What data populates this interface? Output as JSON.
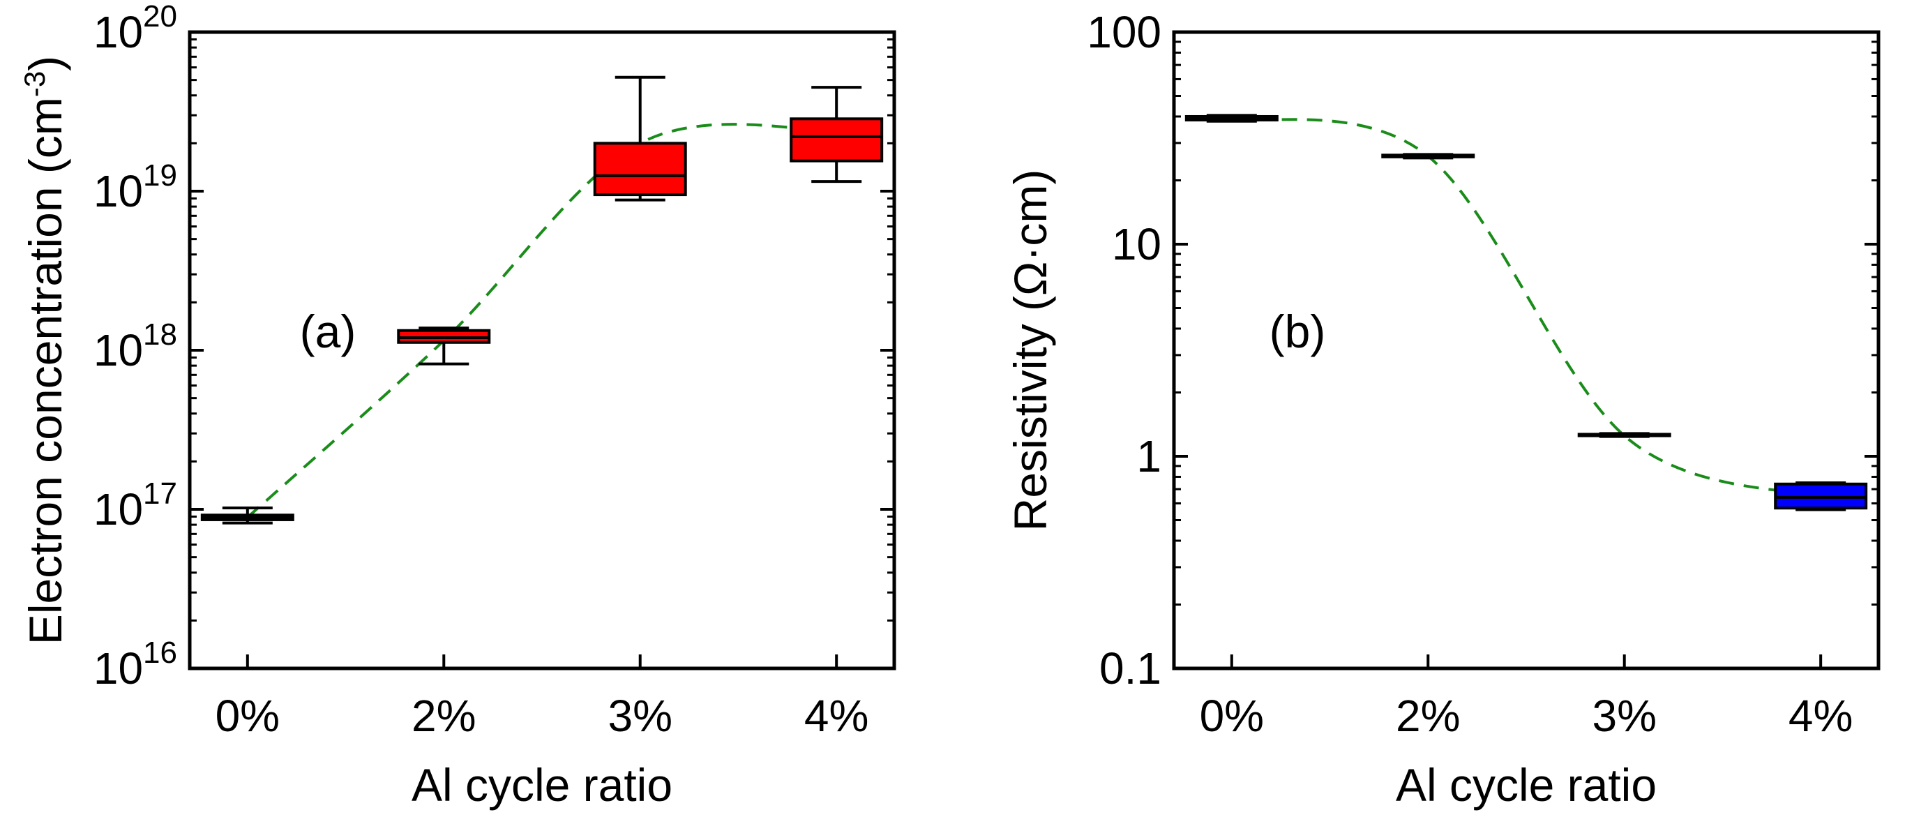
{
  "colors": {
    "box_fill_a": "#ff0000",
    "box_fill_b": "#0000ff",
    "trend_line": "#1a8c1a",
    "axis": "#000000"
  },
  "chart_data": [
    {
      "type": "box",
      "panel_label": "(a)",
      "xlabel": "Al cycle ratio",
      "ylabel": "Electron concentration (cm",
      "ylabel_unit_exponent": "-3",
      "ylabel_close": ")",
      "yscale": "log",
      "ylim": [
        1e+16,
        1e+20
      ],
      "yticks": [
        1e+16,
        1e+17,
        1e+18,
        1e+19,
        1e+20
      ],
      "ytick_labels": [
        {
          "base": "10",
          "exp": "16"
        },
        {
          "base": "10",
          "exp": "17"
        },
        {
          "base": "10",
          "exp": "18"
        },
        {
          "base": "10",
          "exp": "19"
        },
        {
          "base": "10",
          "exp": "20"
        }
      ],
      "categories": [
        "0%",
        "2%",
        "3%",
        "4%"
      ],
      "box_color": "#ff0000",
      "boxes": [
        {
          "category": "0%",
          "whisker_low": 8.2e+16,
          "q1": 8.6e+16,
          "median": 8.9e+16,
          "q3": 9.2e+16,
          "whisker_high": 1.02e+17
        },
        {
          "category": "2%",
          "whisker_low": 8.2e+17,
          "q1": 1.12e+18,
          "median": 1.2e+18,
          "q3": 1.33e+18,
          "whisker_high": 1.38e+18
        },
        {
          "category": "3%",
          "whisker_low": 8.8e+18,
          "q1": 9.5e+18,
          "median": 1.25e+19,
          "q3": 2e+19,
          "whisker_high": 5.2e+19
        },
        {
          "category": "4%",
          "whisker_low": 1.15e+19,
          "q1": 1.55e+19,
          "median": 2.2e+19,
          "q3": 2.85e+19,
          "whisker_high": 4.5e+19
        }
      ],
      "trend": [
        8.9e+16,
        1.15e+18,
        2e+19,
        2.4e+19
      ],
      "trend_style": "dashed"
    },
    {
      "type": "box",
      "panel_label": "(b)",
      "xlabel": "Al cycle ratio",
      "ylabel": "Resistivity (Ω·cm)",
      "yscale": "log",
      "ylim": [
        0.1,
        100
      ],
      "yticks": [
        0.1,
        1,
        10,
        100
      ],
      "ytick_labels": [
        "0.1",
        "1",
        "10",
        "100"
      ],
      "categories": [
        "0%",
        "2%",
        "3%",
        "4%"
      ],
      "box_color": "#0000ff",
      "boxes": [
        {
          "category": "0%",
          "whisker_low": 38.0,
          "q1": 38.5,
          "median": 39.0,
          "q3": 40.0,
          "whisker_high": 40.5
        },
        {
          "category": "2%",
          "whisker_low": 25.5,
          "q1": 25.8,
          "median": 26.0,
          "q3": 26.3,
          "whisker_high": 26.5
        },
        {
          "category": "3%",
          "whisker_low": 1.24,
          "q1": 1.25,
          "median": 1.26,
          "q3": 1.27,
          "whisker_high": 1.28
        },
        {
          "category": "4%",
          "whisker_low": 0.56,
          "q1": 0.57,
          "median": 0.64,
          "q3": 0.74,
          "whisker_high": 0.75
        }
      ],
      "trend": [
        39.0,
        26.0,
        1.25,
        0.64
      ],
      "trend_style": "dashed"
    }
  ]
}
